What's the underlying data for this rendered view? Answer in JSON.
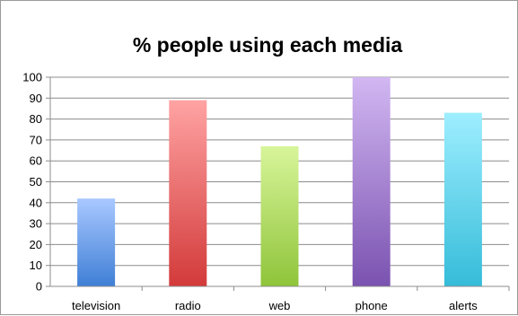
{
  "chart_data": {
    "type": "bar",
    "title": "% people using each media",
    "xlabel": "",
    "ylabel": "",
    "categories": [
      "television",
      "radio",
      "web",
      "phone",
      "alerts"
    ],
    "values": [
      42,
      89,
      67,
      100,
      83
    ],
    "ylim": [
      0,
      100
    ],
    "ytick_step": 10,
    "grid": true,
    "legend": "none",
    "colors": [
      {
        "top": "#a9c8ff",
        "bottom": "#3f7fd6"
      },
      {
        "top": "#ffa3a3",
        "bottom": "#d33a3a"
      },
      {
        "top": "#d8f59a",
        "bottom": "#8fc43a"
      },
      {
        "top": "#d2b7f2",
        "bottom": "#7a52b0"
      },
      {
        "top": "#9eeeff",
        "bottom": "#35bcd9"
      }
    ]
  }
}
